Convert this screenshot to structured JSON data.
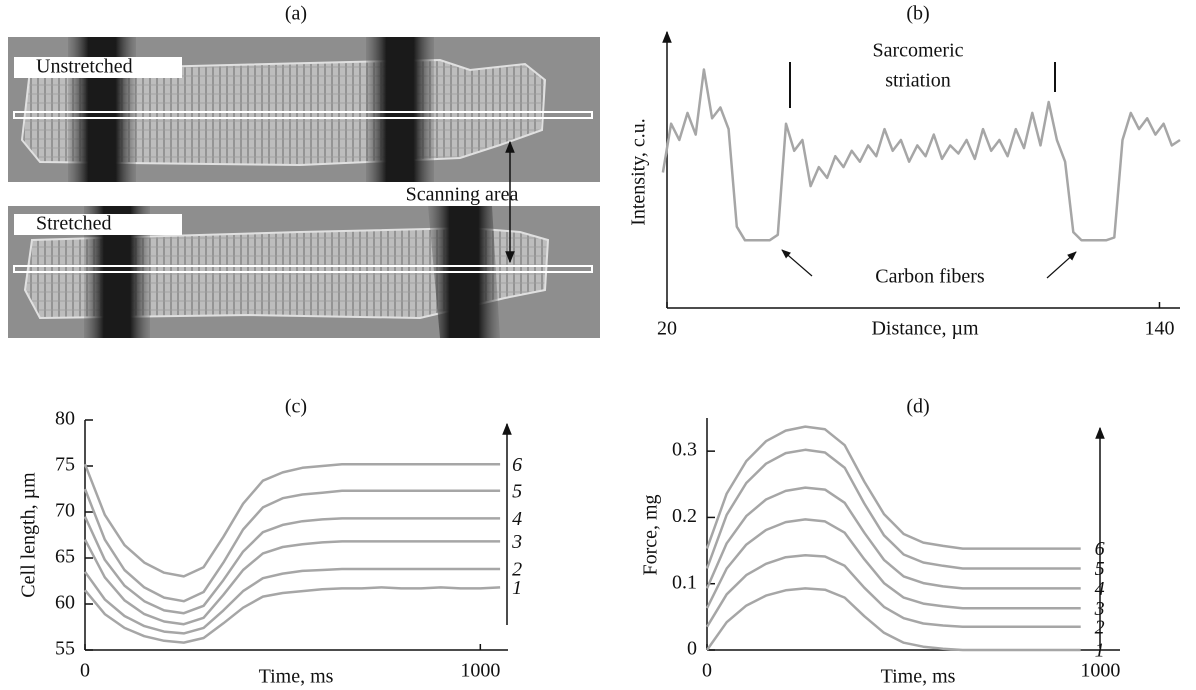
{
  "chart_data": [
    {
      "type": "image",
      "title": "(a)",
      "labels": [
        "Unstretched",
        "Stretched"
      ],
      "annotation": "Scanning area"
    },
    {
      "type": "line",
      "title": "(b)",
      "xlabel": "Distance, µm",
      "ylabel": "Intensity, c.u.",
      "xlim": [
        20,
        145
      ],
      "xticks": [
        20,
        140
      ],
      "ylim": [
        0,
        100
      ],
      "color": "#a6a6a6",
      "annotations": [
        {
          "lines": [
            "Sarcomeric",
            "striation"
          ]
        },
        {
          "lines": [
            "Carbon fibers"
          ]
        }
      ],
      "x": [
        19,
        21,
        23,
        25,
        27,
        29,
        31,
        33,
        35,
        37,
        39,
        41,
        43,
        45,
        47,
        49,
        51,
        53,
        55,
        57,
        59,
        61,
        63,
        65,
        67,
        69,
        71,
        73,
        75,
        77,
        79,
        81,
        83,
        85,
        87,
        89,
        91,
        93,
        95,
        97,
        99,
        101,
        103,
        105,
        107,
        109,
        111,
        113,
        115,
        117,
        119,
        121,
        123,
        125,
        127,
        129,
        131,
        133,
        135,
        137,
        139,
        141,
        143,
        145
      ],
      "values": [
        50,
        68,
        62,
        72,
        64,
        88,
        70,
        74,
        66,
        30,
        25,
        25,
        25,
        25,
        27,
        68,
        58,
        62,
        45,
        52,
        48,
        56,
        52,
        58,
        54,
        60,
        56,
        66,
        58,
        62,
        54,
        60,
        56,
        64,
        55,
        60,
        57,
        62,
        55,
        66,
        58,
        62,
        56,
        66,
        59,
        72,
        60,
        76,
        62,
        54,
        28,
        25,
        25,
        25,
        25,
        26,
        62,
        72,
        66,
        70,
        64,
        68,
        60,
        62
      ]
    },
    {
      "type": "line",
      "title": "(c)",
      "xlabel": "Time, ms",
      "ylabel": "Cell length, µm",
      "xlim": [
        0,
        1070
      ],
      "xticks": [
        0,
        1000
      ],
      "ylim": [
        55,
        80
      ],
      "yticks": [
        55,
        60,
        65,
        70,
        75,
        80
      ],
      "x": [
        0,
        50,
        100,
        150,
        200,
        250,
        300,
        350,
        400,
        450,
        500,
        550,
        600,
        650,
        700,
        750,
        800,
        850,
        900,
        950,
        1000,
        1050
      ],
      "series": [
        {
          "name": "1",
          "color": "#a6a6a6",
          "values": [
            61.5,
            58.9,
            57.4,
            56.5,
            56.0,
            55.8,
            56.3,
            57.9,
            59.6,
            60.8,
            61.2,
            61.4,
            61.6,
            61.7,
            61.7,
            61.8,
            61.7,
            61.7,
            61.8,
            61.7,
            61.7,
            61.8
          ]
        },
        {
          "name": "2",
          "color": "#a6a6a6",
          "values": [
            63.5,
            60.5,
            58.7,
            57.6,
            57.0,
            56.8,
            57.4,
            59.3,
            61.4,
            62.8,
            63.3,
            63.6,
            63.7,
            63.8,
            63.8,
            63.8,
            63.8,
            63.8,
            63.8,
            63.8,
            63.8,
            63.8
          ]
        },
        {
          "name": "3",
          "color": "#a6a6a6",
          "values": [
            67.0,
            62.9,
            60.4,
            58.9,
            58.1,
            57.8,
            58.5,
            61.0,
            63.7,
            65.5,
            66.2,
            66.5,
            66.7,
            66.8,
            66.8,
            66.8,
            66.8,
            66.8,
            66.8,
            66.8,
            66.8,
            66.8
          ]
        },
        {
          "name": "4",
          "color": "#a6a6a6",
          "values": [
            69.5,
            64.8,
            62.0,
            60.3,
            59.3,
            59.0,
            59.8,
            62.6,
            65.7,
            67.8,
            68.6,
            69.0,
            69.2,
            69.3,
            69.3,
            69.3,
            69.3,
            69.3,
            69.3,
            69.3,
            69.3,
            69.3
          ]
        },
        {
          "name": "5",
          "color": "#a6a6a6",
          "values": [
            72.5,
            67.0,
            63.7,
            61.8,
            60.7,
            60.3,
            61.3,
            64.5,
            68.1,
            70.5,
            71.5,
            71.9,
            72.1,
            72.3,
            72.3,
            72.3,
            72.3,
            72.3,
            72.3,
            72.3,
            72.3,
            72.3
          ]
        },
        {
          "name": "6",
          "color": "#a6a6a6",
          "values": [
            75.2,
            69.7,
            66.4,
            64.5,
            63.4,
            63.0,
            64.0,
            67.3,
            70.9,
            73.4,
            74.3,
            74.8,
            75.0,
            75.2,
            75.2,
            75.2,
            75.2,
            75.2,
            75.2,
            75.2,
            75.2,
            75.2
          ]
        }
      ]
    },
    {
      "type": "line",
      "title": "(d)",
      "xlabel": "Time, ms",
      "ylabel": "Force, mg",
      "xlim": [
        0,
        1050
      ],
      "xticks": [
        0,
        1000
      ],
      "ylim": [
        0,
        0.35
      ],
      "yticks": [
        0,
        0.1,
        0.2,
        0.3
      ],
      "x": [
        0,
        50,
        100,
        150,
        200,
        250,
        300,
        350,
        400,
        450,
        500,
        550,
        600,
        650,
        700,
        750,
        800,
        850,
        900,
        950
      ],
      "series": [
        {
          "name": "1",
          "color": "#a6a6a6",
          "values": [
            0.0,
            0.042,
            0.067,
            0.082,
            0.09,
            0.093,
            0.091,
            0.079,
            0.051,
            0.026,
            0.011,
            0.005,
            0.002,
            0.0,
            0.0,
            0.0,
            0.0,
            0.0,
            0.0,
            0.0
          ]
        },
        {
          "name": "2",
          "color": "#a6a6a6",
          "values": [
            0.035,
            0.084,
            0.113,
            0.13,
            0.14,
            0.143,
            0.141,
            0.127,
            0.094,
            0.065,
            0.048,
            0.04,
            0.037,
            0.035,
            0.035,
            0.035,
            0.035,
            0.035,
            0.035,
            0.035
          ]
        },
        {
          "name": "3",
          "color": "#a6a6a6",
          "values": [
            0.063,
            0.123,
            0.159,
            0.181,
            0.193,
            0.197,
            0.194,
            0.177,
            0.137,
            0.101,
            0.079,
            0.07,
            0.066,
            0.063,
            0.063,
            0.063,
            0.063,
            0.063,
            0.063,
            0.063
          ]
        },
        {
          "name": "4",
          "color": "#a6a6a6",
          "values": [
            0.093,
            0.161,
            0.202,
            0.227,
            0.24,
            0.245,
            0.242,
            0.222,
            0.177,
            0.136,
            0.111,
            0.101,
            0.096,
            0.093,
            0.093,
            0.093,
            0.093,
            0.093,
            0.093,
            0.093
          ]
        },
        {
          "name": "5",
          "color": "#a6a6a6",
          "values": [
            0.123,
            0.204,
            0.252,
            0.281,
            0.297,
            0.302,
            0.298,
            0.275,
            0.221,
            0.173,
            0.144,
            0.132,
            0.127,
            0.123,
            0.123,
            0.123,
            0.123,
            0.123,
            0.123,
            0.123
          ]
        },
        {
          "name": "6",
          "color": "#a6a6a6",
          "values": [
            0.153,
            0.236,
            0.285,
            0.315,
            0.331,
            0.337,
            0.333,
            0.309,
            0.254,
            0.205,
            0.175,
            0.162,
            0.157,
            0.153,
            0.153,
            0.153,
            0.153,
            0.153,
            0.153,
            0.153
          ]
        }
      ]
    }
  ]
}
